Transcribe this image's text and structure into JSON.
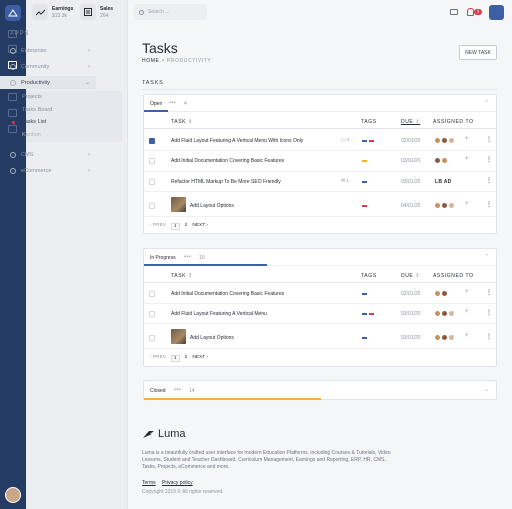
{
  "topbar": {
    "earnings_label": "Earnings",
    "earnings_value": "$13.3k",
    "sales_label": "Sales",
    "sales_value": "264",
    "search_placeholder": "Search ...",
    "notifications_count": "2"
  },
  "sidebar": {
    "section": "APPS",
    "items": [
      {
        "label": "Enterprise"
      },
      {
        "label": "Community"
      },
      {
        "label": "Productivity"
      },
      {
        "label": "CMS"
      },
      {
        "label": "eCommerce"
      }
    ],
    "subitems": [
      {
        "label": "Projects"
      },
      {
        "label": "Tasks Board"
      },
      {
        "label": "Tasks List"
      },
      {
        "label": "Kanban"
      }
    ]
  },
  "page": {
    "title": "Tasks",
    "breadcrumb_home": "HOME",
    "breadcrumb_sep": ">",
    "breadcrumb_current": "PRODUCTIVITY",
    "new_task_button": "NEW TASK",
    "section_label": "TASKS"
  },
  "columns": {
    "task": "TASK",
    "tags": "TAGS",
    "due": "DUE",
    "assigned": "ASSIGNED TO",
    "sort_glyph": "⇕"
  },
  "groups": {
    "open": {
      "name": "Open",
      "count": "4",
      "tasks": [
        {
          "title": "Add Fluid Layout Featuring A Vertical Menu With Icons Only",
          "comments": "2",
          "due": "02/01/20",
          "checked": true
        },
        {
          "title": "Add Initial Documentation Covering Basic Features",
          "due": "03/01/20"
        },
        {
          "title": "Refactor HTML Markup To Be More SEO Friendly",
          "attachments": "1",
          "due": "03/01/20",
          "assignee_initials": "LB AD"
        },
        {
          "title": "Add Layout Options",
          "due": "04/01/20"
        }
      ],
      "pager": {
        "prev": "‹ PREV",
        "pages": [
          "1",
          "2"
        ],
        "next": "NEXT ›"
      }
    },
    "in_progress": {
      "name": "In Progress",
      "count": "10",
      "tasks": [
        {
          "title": "Add Initial Documentation Covering Basic Features",
          "due": "02/01/20"
        },
        {
          "title": "Add Fluid Layout Featuring A Vertical Menu",
          "due": "03/01/20"
        },
        {
          "title": "Add Layout Options",
          "due": "03/01/20"
        }
      ],
      "pager": {
        "prev": "‹ PREV",
        "pages": [
          "1",
          "2"
        ],
        "next": "NEXT ›"
      }
    },
    "closed": {
      "name": "Closed",
      "count": "14"
    }
  },
  "footer": {
    "brand": "Luma",
    "description": "Luma is a beautifully crafted user interface for modern Education Platforms, including Courses & Tutorials, Video Lessons, Student and Teacher Dashboard, Curriculum Management, Earnings and Reporting, ERP, HR, CMS, Tasks, Projects, eCommerce and more.",
    "terms": "Terms",
    "privacy": "Privacy policy",
    "copyright": "Copyright 2019 © All rights reserved."
  },
  "colors": {
    "accent": "#3d5fa3",
    "rail": "#243b63",
    "tag_blue": "#3d5fa3",
    "tag_red": "#d9394b",
    "tag_yellow": "#f2b134"
  },
  "icons": [
    "logo-icon",
    "earnings-icon",
    "sales-icon",
    "search-icon",
    "mail-icon",
    "bell-icon",
    "comment-icon",
    "attachment-icon",
    "plus-icon",
    "more-icon",
    "chevron-icon"
  ]
}
